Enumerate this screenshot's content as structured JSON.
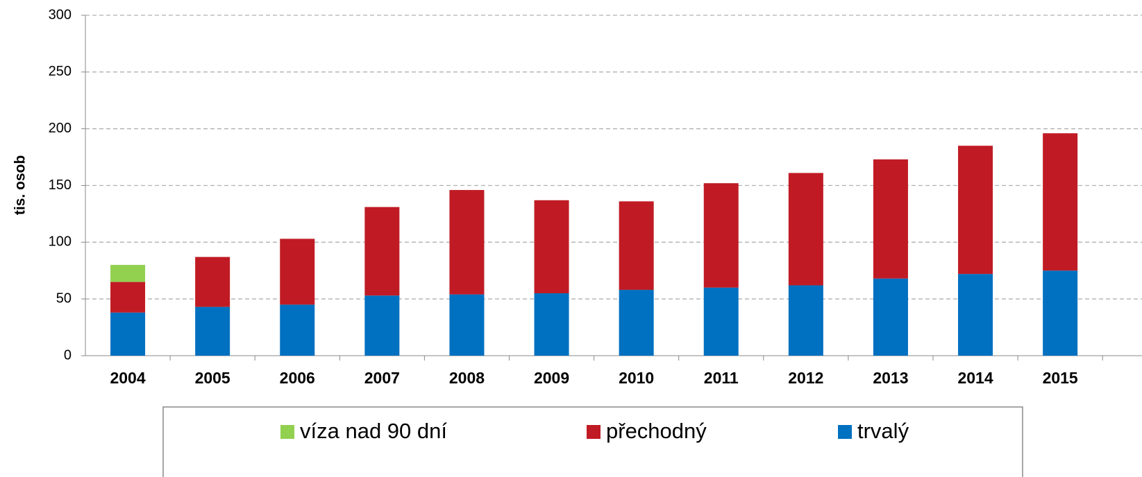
{
  "chart_data": {
    "type": "stacked_bar",
    "y_label": "tis. osob",
    "categories": [
      "2004",
      "2005",
      "2006",
      "2007",
      "2008",
      "2009",
      "2010",
      "2011",
      "2012",
      "2013",
      "2014",
      "2015"
    ],
    "series": [
      {
        "name": "trvalý",
        "color": "#0070c0",
        "values": [
          38,
          43,
          45,
          53,
          54,
          55,
          58,
          60,
          62,
          68,
          72,
          75
        ]
      },
      {
        "name": "přechodný",
        "color": "#c01b24",
        "values": [
          27,
          44,
          58,
          78,
          92,
          82,
          78,
          92,
          99,
          105,
          113,
          121
        ]
      },
      {
        "name": "víza nad 90 dní",
        "color": "#92d050",
        "values": [
          15,
          null,
          null,
          null,
          null,
          null,
          null,
          null,
          null,
          null,
          null,
          null
        ]
      }
    ],
    "ylim": [
      0,
      300
    ],
    "yticks": [
      0,
      50,
      100,
      150,
      200,
      250,
      300
    ],
    "grid": true
  }
}
